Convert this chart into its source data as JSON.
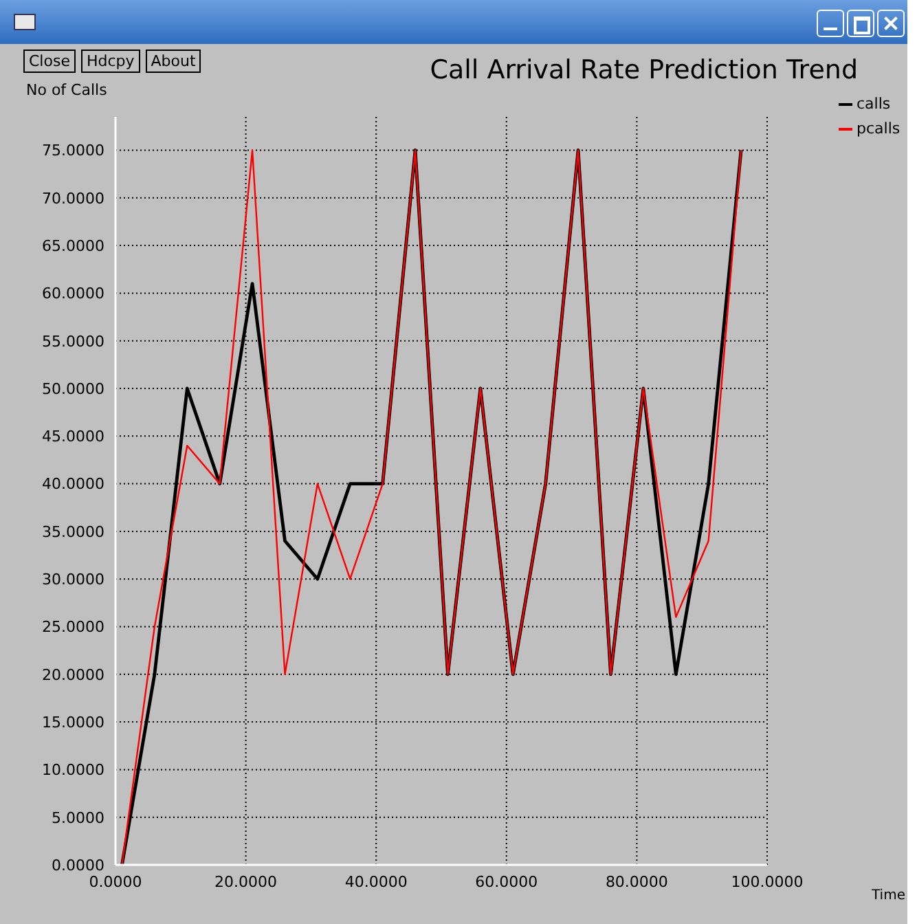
{
  "chart_data": {
    "type": "line",
    "title": "Call Arrival Rate Prediction Trend",
    "xlabel": "Time",
    "ylabel": "No of Calls",
    "annotations": [
      "Close",
      "Hdcpy",
      "About"
    ],
    "x": [
      1,
      6,
      11,
      16,
      21,
      26,
      31,
      36,
      41,
      46,
      51,
      56,
      61,
      66,
      71,
      76,
      81,
      86,
      91,
      96
    ],
    "series": [
      {
        "name": "calls",
        "color": "#000000",
        "values": [
          0,
          20,
          50,
          40,
          61,
          34,
          30,
          40,
          40,
          75,
          20,
          50,
          20,
          40,
          75,
          20,
          50,
          20,
          40,
          75
        ]
      },
      {
        "name": "pcalls",
        "color": "#ff0000",
        "values": [
          0,
          25,
          44,
          40,
          75,
          20,
          40,
          30,
          40,
          75,
          20,
          50,
          20,
          40,
          75,
          20,
          50,
          26,
          34,
          75
        ]
      }
    ],
    "xlim": [
      0,
      100
    ],
    "xticks": [
      {
        "value": 0,
        "label": "0.0000"
      },
      {
        "value": 20,
        "label": "20.0000"
      },
      {
        "value": 40,
        "label": "40.0000"
      },
      {
        "value": 60,
        "label": "60.0000"
      },
      {
        "value": 80,
        "label": "80.0000"
      },
      {
        "value": 100,
        "label": "100.0000"
      }
    ],
    "ylim": [
      0,
      78.5
    ],
    "yticks": [
      {
        "value": 0,
        "label": "0.0000"
      },
      {
        "value": 5,
        "label": "5.0000"
      },
      {
        "value": 10,
        "label": "10.0000"
      },
      {
        "value": 15,
        "label": "15.0000"
      },
      {
        "value": 20,
        "label": "20.0000"
      },
      {
        "value": 25,
        "label": "25.0000"
      },
      {
        "value": 30,
        "label": "30.0000"
      },
      {
        "value": 35,
        "label": "35.0000"
      },
      {
        "value": 40,
        "label": "40.0000"
      },
      {
        "value": 45,
        "label": "45.0000"
      },
      {
        "value": 50,
        "label": "50.0000"
      },
      {
        "value": 55,
        "label": "55.0000"
      },
      {
        "value": 60,
        "label": "60.0000"
      },
      {
        "value": 65,
        "label": "65.0000"
      },
      {
        "value": 70,
        "label": "70.0000"
      },
      {
        "value": 75,
        "label": "75.0000"
      }
    ],
    "grid": true,
    "legend": "top right",
    "marker": "none",
    "line_style": "solid"
  }
}
